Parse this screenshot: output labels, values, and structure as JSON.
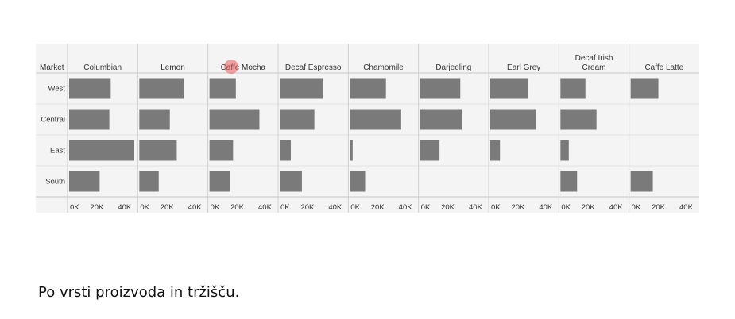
{
  "caption": "Po vrsti proizvoda in tržišču.",
  "colors": {
    "bar": "#7a7a7a",
    "grid": "#d7d7d7",
    "panel_bg": "#f4f4f4",
    "cursor": "#eb5a5a"
  },
  "chart_data": {
    "type": "bar",
    "orientation": "horizontal",
    "small_multiples": true,
    "row_header": "Market",
    "rows": [
      "West",
      "Central",
      "East",
      "South"
    ],
    "x_ticks": [
      "0K",
      "20K",
      "40K"
    ],
    "xlim": [
      0,
      47000
    ],
    "panels": [
      {
        "header_lines": [
          "Columbian"
        ],
        "values": [
          30000,
          29000,
          47000,
          22000
        ]
      },
      {
        "header_lines": [
          "Lemon"
        ],
        "values": [
          32000,
          22000,
          27000,
          14000
        ]
      },
      {
        "header_lines": [
          "Caffe Mocha"
        ],
        "values": [
          19000,
          36000,
          17000,
          15000
        ]
      },
      {
        "header_lines": [
          "Decaf Espresso"
        ],
        "values": [
          31000,
          25000,
          8000,
          16000
        ]
      },
      {
        "header_lines": [
          "Chamomile"
        ],
        "values": [
          26000,
          37000,
          2000,
          11000
        ]
      },
      {
        "header_lines": [
          "Darjeeling"
        ],
        "values": [
          29000,
          30000,
          14000,
          0
        ]
      },
      {
        "header_lines": [
          "Earl Grey"
        ],
        "values": [
          27000,
          33000,
          7000,
          0
        ]
      },
      {
        "header_lines": [
          "Decaf Irish",
          "Cream"
        ],
        "values": [
          18000,
          26000,
          6000,
          12000
        ]
      },
      {
        "header_lines": [
          "Caffe Latte"
        ],
        "values": [
          20000,
          0,
          0,
          16000
        ]
      }
    ]
  }
}
